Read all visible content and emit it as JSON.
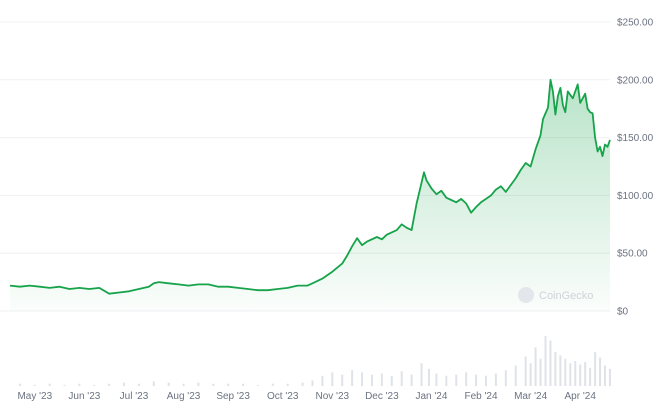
{
  "chart_data": {
    "type": "area",
    "watermark": "CoinGecko",
    "colors": {
      "line": "#16a34a",
      "fill_top": "#16a34a",
      "volume": "#dfe3e8",
      "grid": "#eef0f3"
    },
    "y_ticks": [
      {
        "value": 0,
        "label": "$0"
      },
      {
        "value": 50,
        "label": "$50.00"
      },
      {
        "value": 100,
        "label": "$100.00"
      },
      {
        "value": 150,
        "label": "$150.00"
      },
      {
        "value": 200,
        "label": "$200.00"
      },
      {
        "value": 250,
        "label": "$250.00"
      }
    ],
    "ylim": [
      0,
      250
    ],
    "x_ticks": [
      {
        "t": 0.5,
        "label": "May '23"
      },
      {
        "t": 1.5,
        "label": "Jun '23"
      },
      {
        "t": 2.5,
        "label": "Jul '23"
      },
      {
        "t": 3.5,
        "label": "Aug '23"
      },
      {
        "t": 4.5,
        "label": "Sep '23"
      },
      {
        "t": 5.5,
        "label": "Oct '23"
      },
      {
        "t": 6.5,
        "label": "Nov '23"
      },
      {
        "t": 7.5,
        "label": "Dec '23"
      },
      {
        "t": 8.5,
        "label": "Jan '24"
      },
      {
        "t": 9.5,
        "label": "Feb '24"
      },
      {
        "t": 10.5,
        "label": "Mar '24"
      },
      {
        "t": 11.5,
        "label": "Apr '24"
      }
    ],
    "xlim": [
      0,
      12
    ],
    "series": [
      {
        "values": [
          [
            0,
            22
          ],
          [
            0.2,
            21
          ],
          [
            0.4,
            22
          ],
          [
            0.6,
            21
          ],
          [
            0.8,
            20
          ],
          [
            1,
            21
          ],
          [
            1.2,
            19
          ],
          [
            1.4,
            20
          ],
          [
            1.6,
            19
          ],
          [
            1.8,
            20
          ],
          [
            2,
            15
          ],
          [
            2.2,
            16
          ],
          [
            2.4,
            17
          ],
          [
            2.6,
            19
          ],
          [
            2.8,
            21
          ],
          [
            2.9,
            24
          ],
          [
            3,
            25
          ],
          [
            3.2,
            24
          ],
          [
            3.4,
            23
          ],
          [
            3.6,
            22
          ],
          [
            3.8,
            23
          ],
          [
            4,
            23
          ],
          [
            4.2,
            21
          ],
          [
            4.4,
            21
          ],
          [
            4.6,
            20
          ],
          [
            4.8,
            19
          ],
          [
            5,
            18
          ],
          [
            5.2,
            18
          ],
          [
            5.4,
            19
          ],
          [
            5.6,
            20
          ],
          [
            5.8,
            22
          ],
          [
            6,
            22
          ],
          [
            6.1,
            24
          ],
          [
            6.3,
            28
          ],
          [
            6.5,
            34
          ],
          [
            6.7,
            41
          ],
          [
            6.8,
            48
          ],
          [
            6.9,
            56
          ],
          [
            7,
            63
          ],
          [
            7.1,
            57
          ],
          [
            7.2,
            60
          ],
          [
            7.4,
            64
          ],
          [
            7.5,
            62
          ],
          [
            7.6,
            66
          ],
          [
            7.8,
            70
          ],
          [
            7.9,
            75
          ],
          [
            8,
            72
          ],
          [
            8.1,
            70
          ],
          [
            8.2,
            93
          ],
          [
            8.35,
            120
          ],
          [
            8.4,
            113
          ],
          [
            8.5,
            106
          ],
          [
            8.6,
            101
          ],
          [
            8.7,
            104
          ],
          [
            8.8,
            98
          ],
          [
            8.9,
            96
          ],
          [
            9,
            94
          ],
          [
            9.1,
            97
          ],
          [
            9.2,
            93
          ],
          [
            9.3,
            85
          ],
          [
            9.4,
            90
          ],
          [
            9.5,
            94
          ],
          [
            9.6,
            97
          ],
          [
            9.7,
            100
          ],
          [
            9.8,
            105
          ],
          [
            9.9,
            108
          ],
          [
            10,
            103
          ],
          [
            10.1,
            109
          ],
          [
            10.2,
            115
          ],
          [
            10.3,
            122
          ],
          [
            10.4,
            128
          ],
          [
            10.5,
            125
          ],
          [
            10.6,
            140
          ],
          [
            10.7,
            152
          ],
          [
            10.75,
            166
          ],
          [
            10.85,
            176
          ],
          [
            10.9,
            200
          ],
          [
            10.95,
            190
          ],
          [
            11.0,
            170
          ],
          [
            11.05,
            186
          ],
          [
            11.1,
            193
          ],
          [
            11.15,
            178
          ],
          [
            11.2,
            172
          ],
          [
            11.25,
            190
          ],
          [
            11.35,
            184
          ],
          [
            11.45,
            196
          ],
          [
            11.5,
            180
          ],
          [
            11.6,
            188
          ],
          [
            11.65,
            175
          ],
          [
            11.7,
            172
          ],
          [
            11.75,
            171
          ],
          [
            11.8,
            150
          ],
          [
            11.85,
            138
          ],
          [
            11.9,
            142
          ],
          [
            11.95,
            134
          ],
          [
            12.0,
            144
          ],
          [
            12.05,
            142
          ],
          [
            12.1,
            148
          ]
        ]
      }
    ],
    "volume": {
      "values": [
        [
          0.2,
          2
        ],
        [
          0.5,
          1
        ],
        [
          0.8,
          2
        ],
        [
          1.1,
          1
        ],
        [
          1.4,
          2
        ],
        [
          1.7,
          1
        ],
        [
          2.0,
          2
        ],
        [
          2.3,
          3
        ],
        [
          2.6,
          2
        ],
        [
          2.9,
          4
        ],
        [
          3.2,
          3
        ],
        [
          3.5,
          2
        ],
        [
          3.8,
          3
        ],
        [
          4.1,
          2
        ],
        [
          4.4,
          2
        ],
        [
          4.7,
          2
        ],
        [
          5.0,
          1
        ],
        [
          5.3,
          2
        ],
        [
          5.6,
          2
        ],
        [
          5.9,
          3
        ],
        [
          6.1,
          5
        ],
        [
          6.3,
          9
        ],
        [
          6.5,
          12
        ],
        [
          6.7,
          10
        ],
        [
          6.9,
          14
        ],
        [
          7.1,
          12
        ],
        [
          7.3,
          10
        ],
        [
          7.5,
          11
        ],
        [
          7.7,
          9
        ],
        [
          7.9,
          13
        ],
        [
          8.1,
          10
        ],
        [
          8.3,
          20
        ],
        [
          8.45,
          15
        ],
        [
          8.6,
          11
        ],
        [
          8.8,
          9
        ],
        [
          9.0,
          10
        ],
        [
          9.2,
          12
        ],
        [
          9.4,
          10
        ],
        [
          9.6,
          9
        ],
        [
          9.8,
          11
        ],
        [
          10.0,
          14
        ],
        [
          10.2,
          18
        ],
        [
          10.4,
          26
        ],
        [
          10.5,
          20
        ],
        [
          10.6,
          34
        ],
        [
          10.7,
          24
        ],
        [
          10.8,
          44
        ],
        [
          10.9,
          40
        ],
        [
          11.0,
          30
        ],
        [
          11.1,
          27
        ],
        [
          11.2,
          24
        ],
        [
          11.3,
          20
        ],
        [
          11.4,
          22
        ],
        [
          11.5,
          19
        ],
        [
          11.6,
          21
        ],
        [
          11.7,
          16
        ],
        [
          11.8,
          30
        ],
        [
          11.9,
          25
        ],
        [
          12.0,
          18
        ],
        [
          12.1,
          15
        ]
      ]
    }
  }
}
